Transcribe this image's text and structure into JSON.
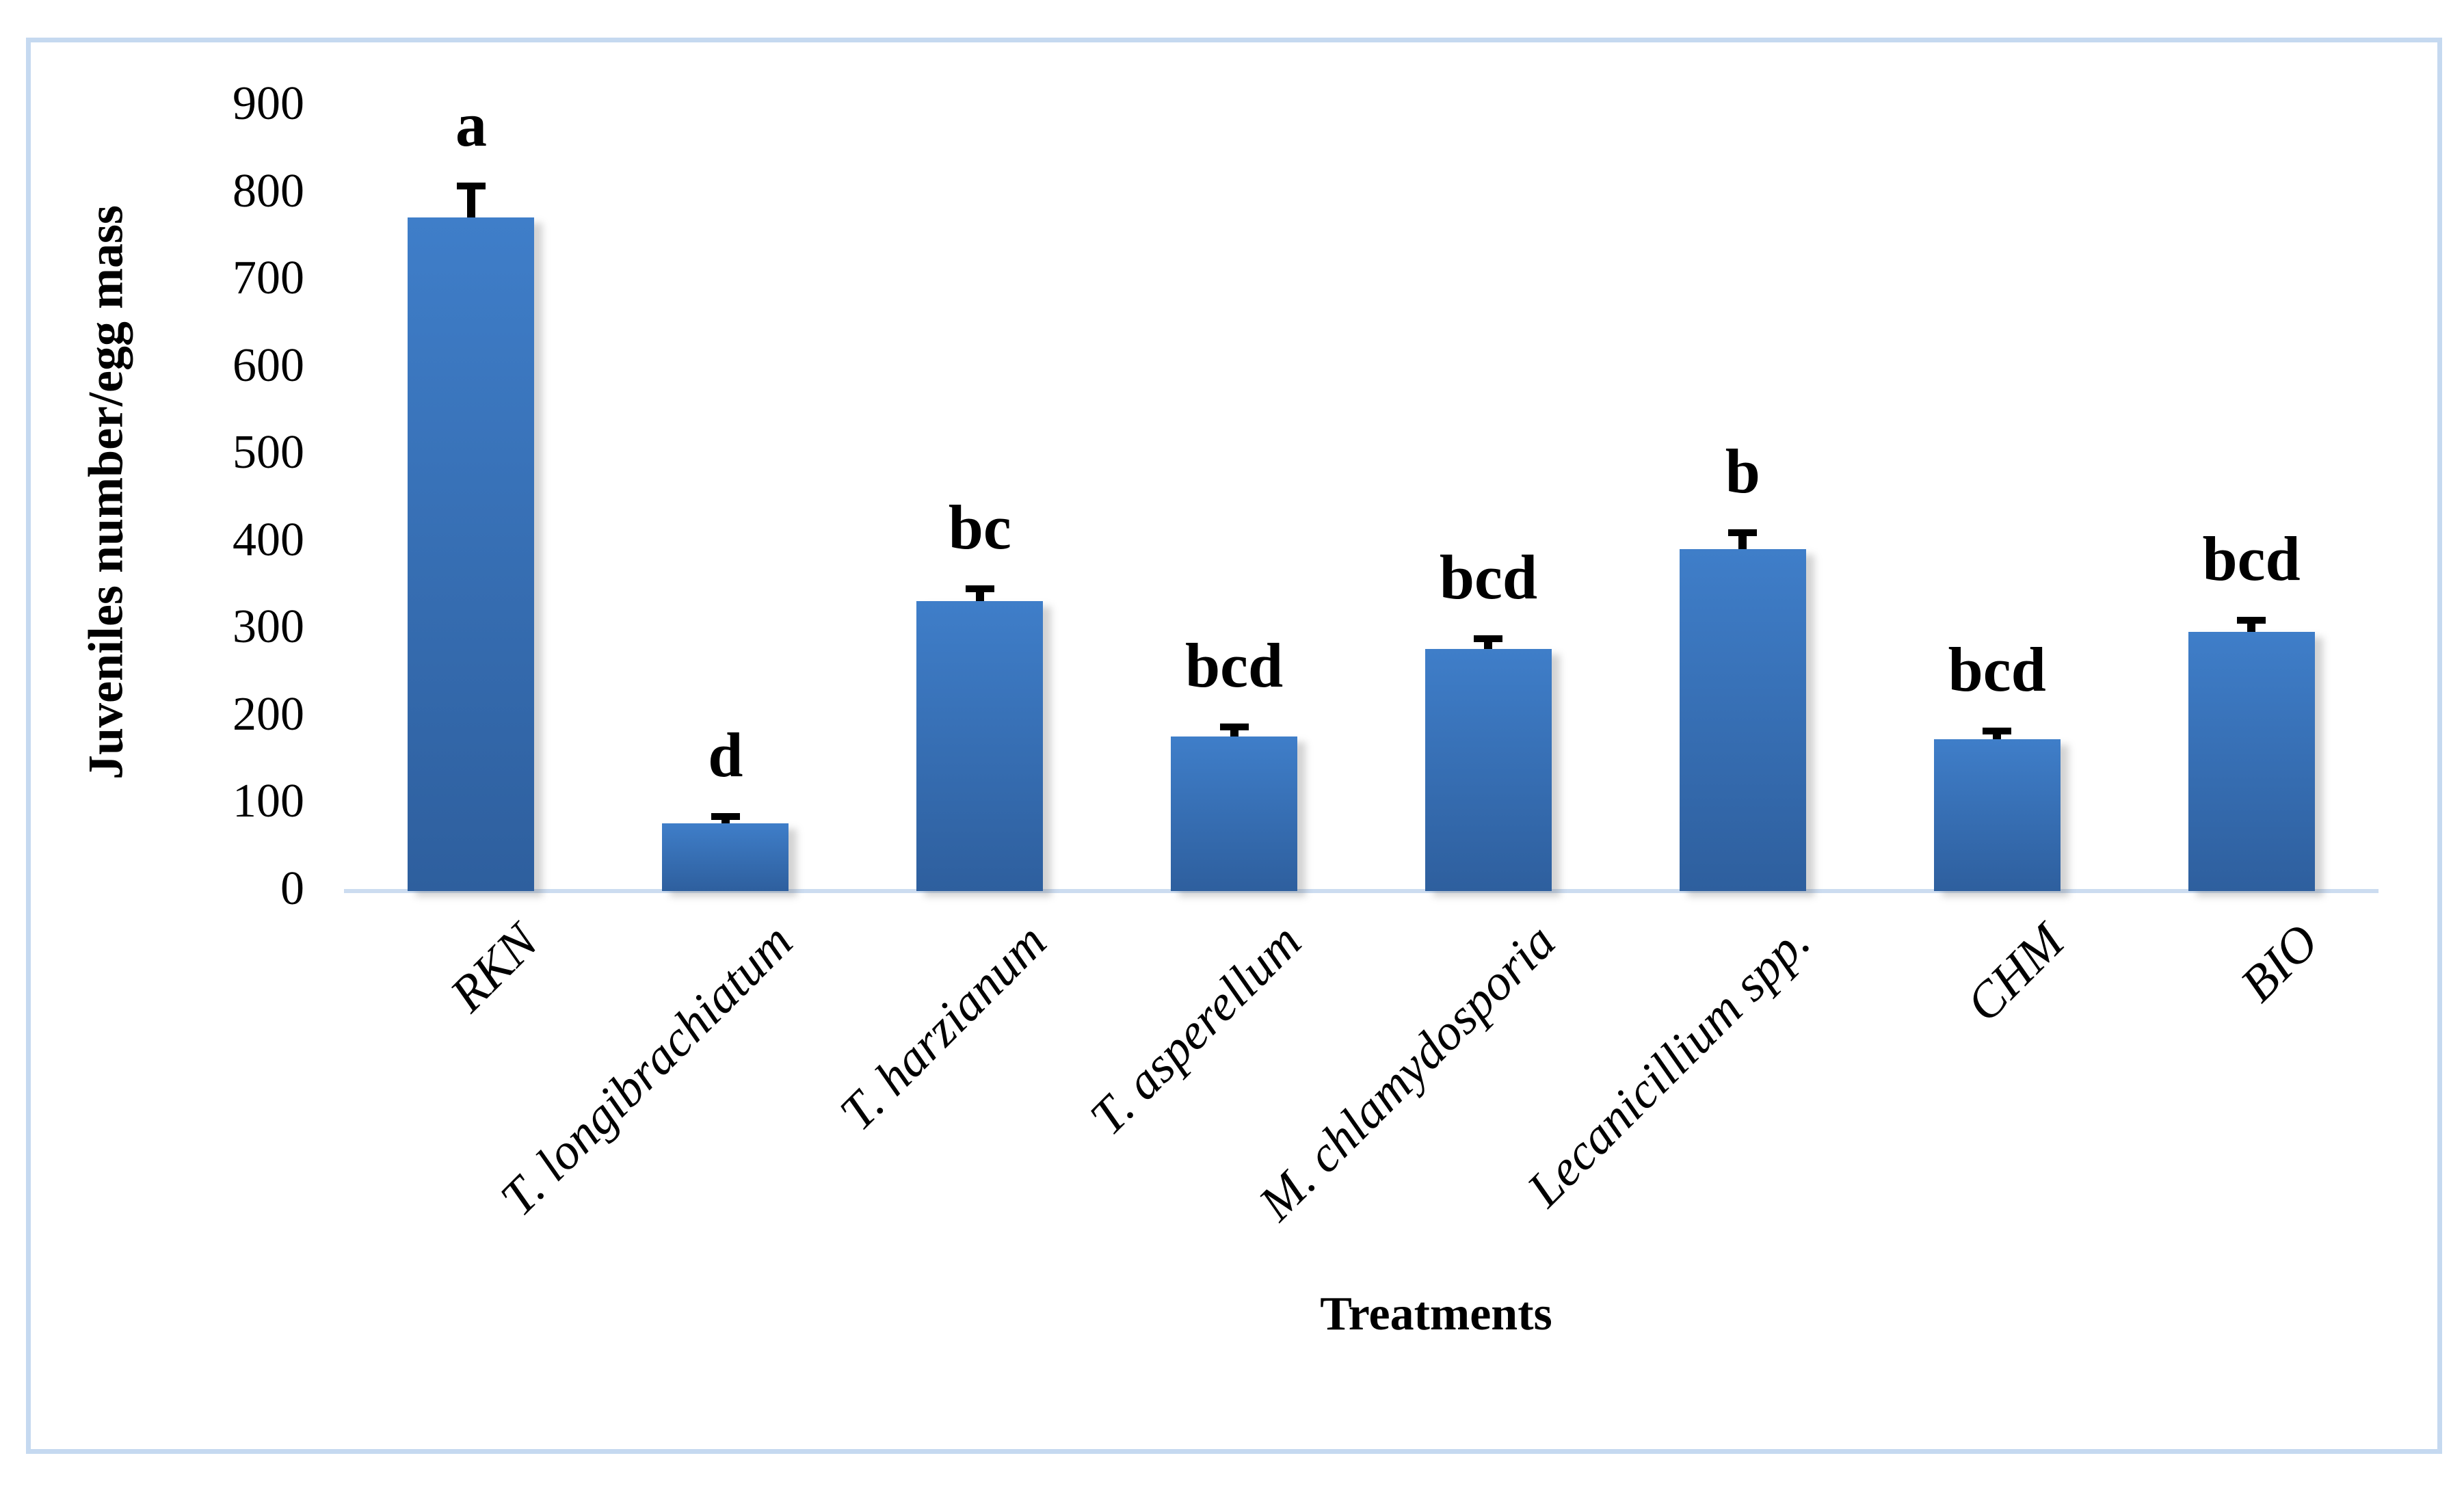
{
  "chart_data": {
    "type": "bar",
    "title": "",
    "ylabel": "Juveniles number/egg mass",
    "xlabel": "Treatments",
    "ylim": [
      0,
      900
    ],
    "ytick_interval": 100,
    "yticks": [
      0,
      100,
      200,
      300,
      400,
      500,
      600,
      700,
      800,
      900
    ],
    "grid": false,
    "legend": "none",
    "categories": [
      "RKN",
      "T. longibrachiatum",
      "T. harzianum",
      "T. asperellum",
      "M. chlamydosporia",
      "Lecanicillium spp.",
      "CHM",
      "BIO"
    ],
    "values": [
      770,
      75,
      330,
      175,
      275,
      390,
      172,
      295
    ],
    "error_up": [
      40,
      12,
      18,
      15,
      16,
      22,
      13,
      17
    ],
    "sig_letters": [
      "a",
      "d",
      "bc",
      "bcd",
      "bcd",
      "b",
      "bcd",
      "bcd"
    ],
    "colors": {
      "bar_top": "#3F7EC9",
      "bar_bottom": "#2E5F9E",
      "error_bar": "#000000",
      "axis_line": "#CCDCF0",
      "frame_border": "#C5D9F0",
      "text": "#000000"
    }
  }
}
